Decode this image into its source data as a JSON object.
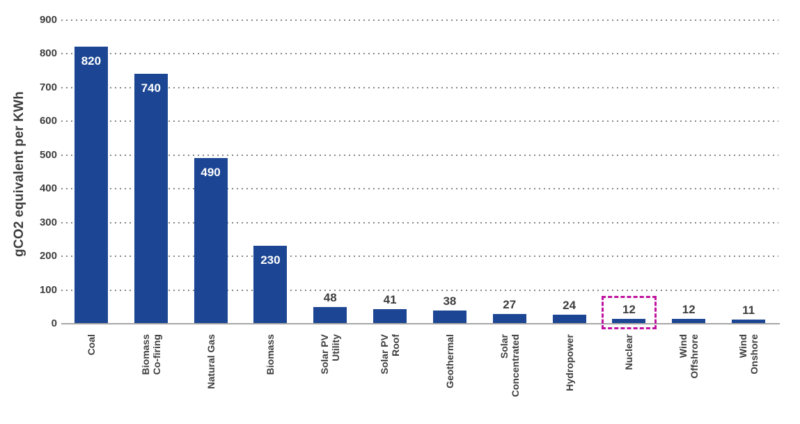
{
  "chart_data": {
    "type": "bar",
    "title": "",
    "xlabel": "",
    "ylabel": "gCO2 equivalent per KWh",
    "ylim": [
      0,
      900
    ],
    "yticks": [
      0,
      100,
      200,
      300,
      400,
      500,
      600,
      700,
      800,
      900
    ],
    "grid": "dotted-horizontal",
    "legend": "none",
    "categories": [
      "Coal",
      "Biomass Co-firing",
      "Natural Gas",
      "Biomass",
      "Solar PV Utility",
      "Solar PV Roof",
      "Geothermal",
      "Solar Concentrated",
      "Hydropower",
      "Nuclear",
      "Wind Offshrore",
      "Wind Onshore"
    ],
    "category_label_lines": [
      [
        "Coal"
      ],
      [
        "Biomass",
        "Co-firing"
      ],
      [
        "Natural Gas"
      ],
      [
        "Biomass"
      ],
      [
        "Solar PV",
        "Utility"
      ],
      [
        "Solar PV",
        "Roof"
      ],
      [
        "Geothermal"
      ],
      [
        "Solar",
        "Concentrated"
      ],
      [
        "Hydropower"
      ],
      [
        "Nuclear"
      ],
      [
        "Wind",
        "Offshrore"
      ],
      [
        "Wind",
        "Onshore"
      ]
    ],
    "values": [
      820,
      740,
      490,
      230,
      48,
      41,
      38,
      27,
      24,
      12,
      12,
      11
    ],
    "value_label_inside_threshold": 100,
    "highlight": {
      "category": "Nuclear",
      "index": 9,
      "style": "dashed-box",
      "color": "#c011a0"
    },
    "colors": {
      "bar": "#1c4693",
      "value_label_inside": "#ffffff",
      "value_label_outside": "#3d3d3d",
      "axis_text": "#3d3d3d",
      "axis_line": "#a6a6a6",
      "gridline": "#858585",
      "background": "#ffffff"
    }
  }
}
